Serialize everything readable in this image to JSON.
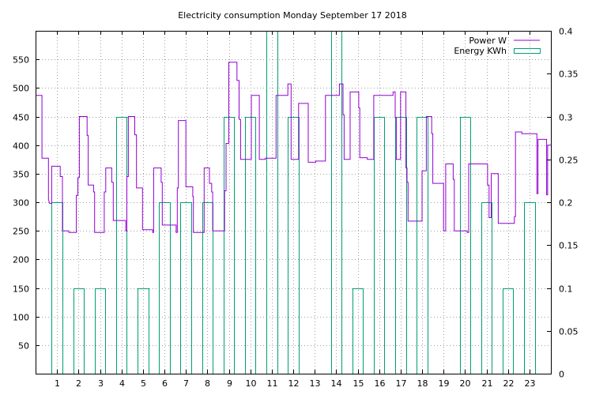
{
  "chart_data": {
    "type": "line",
    "title": "Electricity consumption Monday September 17 2018",
    "x_ticks": [
      1,
      2,
      3,
      4,
      5,
      6,
      7,
      8,
      9,
      10,
      11,
      12,
      13,
      14,
      15,
      16,
      17,
      18,
      19,
      20,
      21,
      22,
      23
    ],
    "xlim": [
      0,
      24
    ],
    "y1_ticks": [
      50,
      100,
      150,
      200,
      250,
      300,
      350,
      400,
      450,
      500,
      550
    ],
    "y1lim": [
      0,
      600
    ],
    "y2_ticks": [
      "0",
      "0.05",
      "0.1",
      "0.15",
      "0.2",
      "0.25",
      "0.3",
      "0.35",
      "0.4"
    ],
    "y2lim": [
      0,
      0.4
    ],
    "grid": true,
    "legend_position": "top-right",
    "colors": {
      "power": "#9400d3",
      "energy": "#009e73"
    },
    "series": [
      {
        "name": "Power W",
        "axis": "y1",
        "style": "step-line",
        "points": [
          [
            0.0,
            487
          ],
          [
            0.3,
            487
          ],
          [
            0.3,
            377
          ],
          [
            0.6,
            377
          ],
          [
            0.6,
            305
          ],
          [
            0.65,
            298
          ],
          [
            0.75,
            298
          ],
          [
            0.75,
            363
          ],
          [
            1.15,
            363
          ],
          [
            1.15,
            345
          ],
          [
            1.25,
            345
          ],
          [
            1.25,
            250
          ],
          [
            1.55,
            250
          ],
          [
            1.55,
            247
          ],
          [
            1.9,
            247
          ],
          [
            1.9,
            312
          ],
          [
            1.97,
            312
          ],
          [
            1.97,
            343
          ],
          [
            2.04,
            343
          ],
          [
            2.04,
            450
          ],
          [
            2.4,
            450
          ],
          [
            2.4,
            417
          ],
          [
            2.45,
            417
          ],
          [
            2.45,
            330
          ],
          [
            2.7,
            330
          ],
          [
            2.7,
            318
          ],
          [
            2.75,
            318
          ],
          [
            2.75,
            247
          ],
          [
            3.2,
            247
          ],
          [
            3.2,
            318
          ],
          [
            3.27,
            318
          ],
          [
            3.27,
            360
          ],
          [
            3.55,
            360
          ],
          [
            3.55,
            335
          ],
          [
            3.62,
            335
          ],
          [
            3.62,
            268
          ],
          [
            4.2,
            268
          ],
          [
            4.2,
            250
          ],
          [
            4.25,
            250
          ],
          [
            4.25,
            345
          ],
          [
            4.32,
            345
          ],
          [
            4.32,
            450
          ],
          [
            4.62,
            450
          ],
          [
            4.62,
            418
          ],
          [
            4.7,
            418
          ],
          [
            4.7,
            325
          ],
          [
            4.98,
            325
          ],
          [
            4.98,
            252
          ],
          [
            5.45,
            252
          ],
          [
            5.45,
            247
          ],
          [
            5.5,
            247
          ],
          [
            5.5,
            360
          ],
          [
            5.85,
            360
          ],
          [
            5.85,
            335
          ],
          [
            5.9,
            335
          ],
          [
            5.9,
            260
          ],
          [
            6.55,
            260
          ],
          [
            6.55,
            247
          ],
          [
            6.6,
            247
          ],
          [
            6.6,
            325
          ],
          [
            6.65,
            325
          ],
          [
            6.65,
            443
          ],
          [
            7.0,
            443
          ],
          [
            7.0,
            327
          ],
          [
            7.32,
            327
          ],
          [
            7.32,
            310
          ],
          [
            7.35,
            310
          ],
          [
            7.35,
            247
          ],
          [
            7.85,
            247
          ],
          [
            7.85,
            360
          ],
          [
            8.1,
            360
          ],
          [
            8.1,
            333
          ],
          [
            8.2,
            333
          ],
          [
            8.2,
            318
          ],
          [
            8.25,
            318
          ],
          [
            8.25,
            250
          ],
          [
            8.8,
            250
          ],
          [
            8.8,
            320
          ],
          [
            8.87,
            320
          ],
          [
            8.87,
            403
          ],
          [
            9.0,
            403
          ],
          [
            9.0,
            545
          ],
          [
            9.38,
            545
          ],
          [
            9.38,
            513
          ],
          [
            9.48,
            513
          ],
          [
            9.48,
            445
          ],
          [
            9.55,
            445
          ],
          [
            9.55,
            375
          ],
          [
            10.05,
            375
          ],
          [
            10.05,
            487
          ],
          [
            10.42,
            487
          ],
          [
            10.42,
            375
          ],
          [
            10.7,
            375
          ],
          [
            10.7,
            377
          ],
          [
            11.2,
            377
          ],
          [
            11.2,
            487
          ],
          [
            11.75,
            487
          ],
          [
            11.75,
            507
          ],
          [
            11.9,
            507
          ],
          [
            11.9,
            375
          ],
          [
            12.25,
            375
          ],
          [
            12.25,
            473
          ],
          [
            12.7,
            473
          ],
          [
            12.7,
            370
          ],
          [
            13.05,
            370
          ],
          [
            13.05,
            372
          ],
          [
            13.5,
            372
          ],
          [
            13.5,
            487
          ],
          [
            14.15,
            487
          ],
          [
            14.15,
            507
          ],
          [
            14.32,
            507
          ],
          [
            14.32,
            453
          ],
          [
            14.37,
            453
          ],
          [
            14.37,
            375
          ],
          [
            14.65,
            375
          ],
          [
            14.65,
            493
          ],
          [
            15.05,
            493
          ],
          [
            15.05,
            465
          ],
          [
            15.1,
            465
          ],
          [
            15.1,
            378
          ],
          [
            15.45,
            378
          ],
          [
            15.45,
            375
          ],
          [
            15.75,
            375
          ],
          [
            15.75,
            487
          ],
          [
            16.65,
            487
          ],
          [
            16.65,
            493
          ],
          [
            16.75,
            493
          ],
          [
            16.75,
            448
          ],
          [
            16.8,
            448
          ],
          [
            16.8,
            375
          ],
          [
            17.0,
            375
          ],
          [
            17.0,
            493
          ],
          [
            17.25,
            493
          ],
          [
            17.25,
            360
          ],
          [
            17.3,
            360
          ],
          [
            17.3,
            335
          ],
          [
            17.35,
            335
          ],
          [
            17.35,
            267
          ],
          [
            18.0,
            267
          ],
          [
            18.0,
            355
          ],
          [
            18.2,
            355
          ],
          [
            18.2,
            450
          ],
          [
            18.45,
            450
          ],
          [
            18.45,
            420
          ],
          [
            18.5,
            420
          ],
          [
            18.5,
            333
          ],
          [
            19.0,
            333
          ],
          [
            19.0,
            250
          ],
          [
            19.1,
            250
          ],
          [
            19.1,
            367
          ],
          [
            19.45,
            367
          ],
          [
            19.45,
            340
          ],
          [
            19.5,
            340
          ],
          [
            19.5,
            250
          ],
          [
            20.1,
            250
          ],
          [
            20.1,
            247
          ],
          [
            20.17,
            247
          ],
          [
            20.17,
            367
          ],
          [
            21.05,
            367
          ],
          [
            21.05,
            330
          ],
          [
            21.12,
            330
          ],
          [
            21.12,
            273
          ],
          [
            21.22,
            273
          ],
          [
            21.22,
            350
          ],
          [
            21.55,
            350
          ],
          [
            21.55,
            263
          ],
          [
            22.3,
            263
          ],
          [
            22.3,
            275
          ],
          [
            22.35,
            275
          ],
          [
            22.35,
            423
          ],
          [
            22.65,
            423
          ],
          [
            22.65,
            420
          ],
          [
            23.35,
            420
          ],
          [
            23.35,
            315
          ],
          [
            23.4,
            315
          ],
          [
            23.4,
            410
          ],
          [
            23.8,
            410
          ],
          [
            23.8,
            313
          ],
          [
            23.85,
            313
          ],
          [
            23.85,
            400
          ],
          [
            24.0,
            400
          ]
        ]
      },
      {
        "name": "Energy KWh",
        "axis": "y2",
        "style": "step-bar",
        "values": [
          0.2,
          0.1,
          0.1,
          0.3,
          0.1,
          0.2,
          0.2,
          0.2,
          0.3,
          0.3,
          0.4,
          0.3,
          0,
          0.4,
          0.1,
          0.3,
          0.3,
          0.3,
          0,
          0.3,
          0.2,
          0.1,
          0.2
        ]
      }
    ]
  }
}
